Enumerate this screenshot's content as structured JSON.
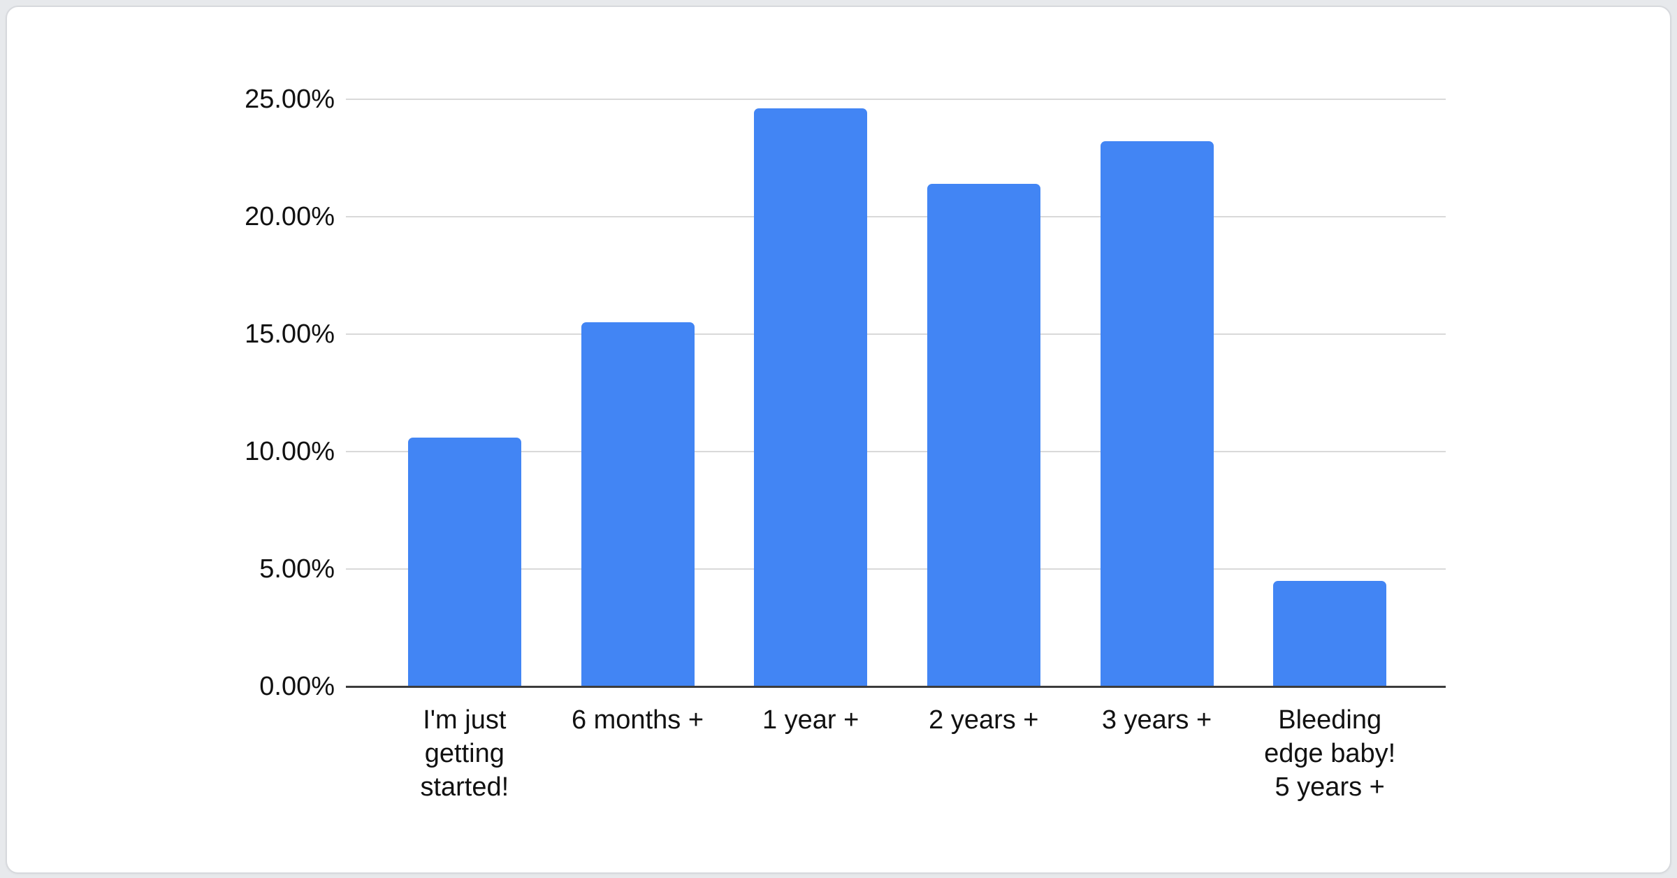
{
  "chart_data": {
    "type": "bar",
    "title": "",
    "xlabel": "",
    "ylabel": "",
    "categories": [
      "I'm just getting started!",
      "6 months +",
      "1 year +",
      "2 years +",
      "3 years +",
      "Bleeding edge baby! 5 years +"
    ],
    "category_lines": [
      [
        "I'm just",
        "getting",
        "started!"
      ],
      [
        "6 months +"
      ],
      [
        "1 year +"
      ],
      [
        "2 years +"
      ],
      [
        "3 years +"
      ],
      [
        "Bleeding",
        "edge baby!",
        "5 years +"
      ]
    ],
    "category_slugs": [
      "im-just-getting-started",
      "6-months-plus",
      "1-year-plus",
      "2-years-plus",
      "3-years-plus",
      "bleeding-edge-baby-5-years-plus"
    ],
    "values": [
      10.6,
      15.5,
      24.6,
      21.4,
      23.2,
      4.5
    ],
    "unit": "%",
    "y_ticks": [
      "0.00%",
      "5.00%",
      "10.00%",
      "15.00%",
      "20.00%",
      "25.00%"
    ],
    "y_tick_values": [
      0,
      5,
      10,
      15,
      20,
      25
    ],
    "ylim": [
      0,
      25
    ],
    "grid": true,
    "legend": "none",
    "colors": {
      "bar": "#4285f4",
      "gridline": "#d9d9d9",
      "axis_line": "#3c3c3c",
      "label_text": "#111111",
      "card_background": "#ffffff",
      "card_border": "#d7d9dd",
      "page_background": "#e7e9ec"
    }
  }
}
